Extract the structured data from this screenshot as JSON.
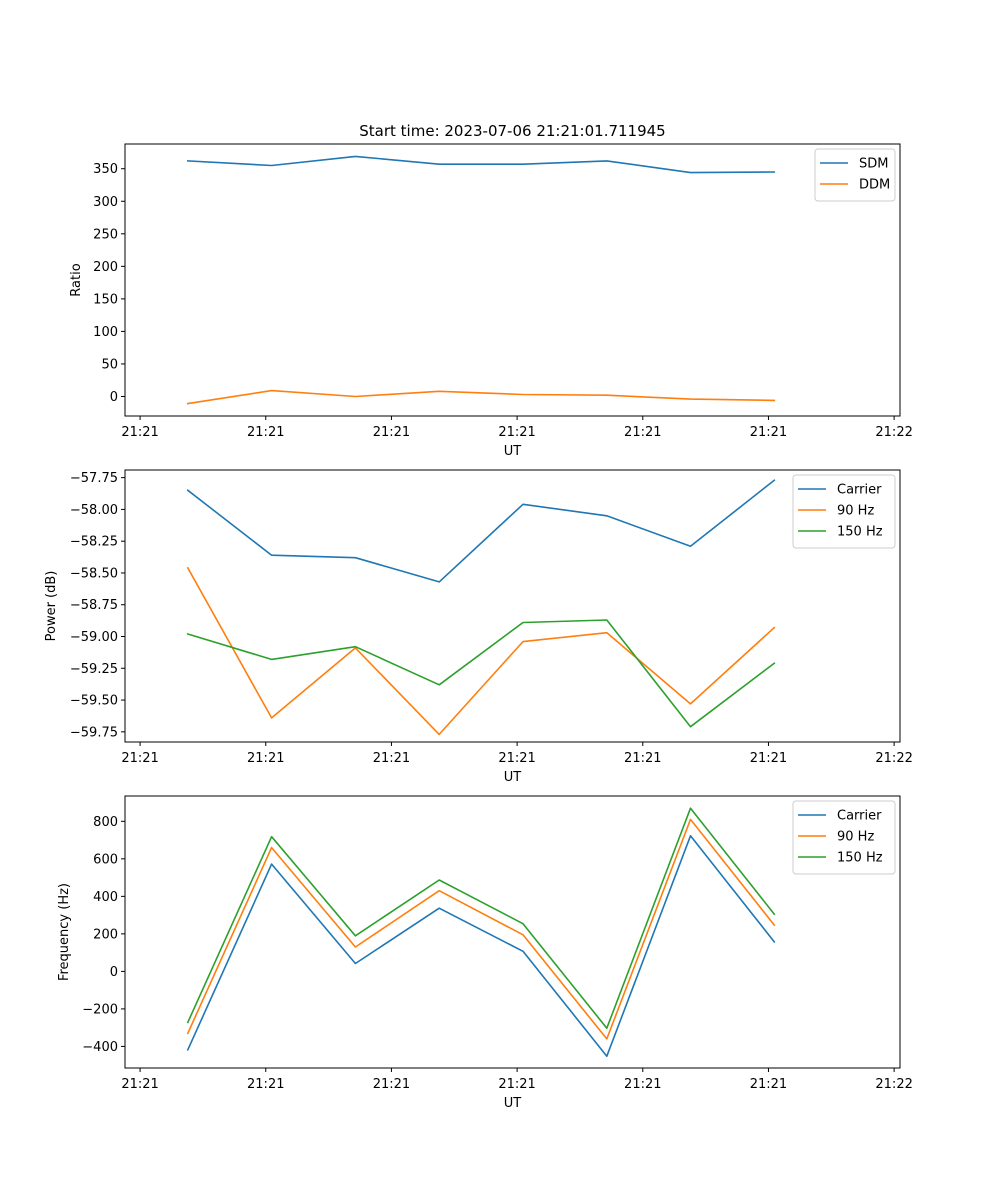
{
  "figure_title": "Start time: 2023-07-06 21:21:01.711945",
  "colors": {
    "blue": "#1f77b4",
    "orange": "#ff7f0e",
    "green": "#2ca02c"
  },
  "chart_data": [
    {
      "type": "line",
      "title": "Start time: 2023-07-06 21:21:01.711945",
      "xlabel": "UT",
      "ylabel": "Ratio",
      "xlim": [
        -0.75,
        8.5
      ],
      "ylim": [
        -30,
        388
      ],
      "x_ticks": [
        -0.57,
        0.93,
        2.43,
        3.93,
        5.43,
        6.93,
        8.43
      ],
      "x_tick_labels": [
        "21:21",
        "21:21",
        "21:21",
        "21:21",
        "21:21",
        "21:21",
        "21:22"
      ],
      "y_ticks": [
        0,
        50,
        100,
        150,
        200,
        250,
        300,
        350
      ],
      "y_tick_labels": [
        "0",
        "50",
        "100",
        "150",
        "200",
        "250",
        "300",
        "350"
      ],
      "x": [
        0,
        1,
        2,
        3,
        4,
        5,
        6,
        7
      ],
      "series": [
        {
          "name": "SDM",
          "color": "#1f77b4",
          "values": [
            362,
            355,
            369,
            357,
            357,
            362,
            344,
            345
          ]
        },
        {
          "name": "DDM",
          "color": "#ff7f0e",
          "values": [
            -11,
            9,
            0,
            8,
            3,
            2,
            -4,
            -6
          ]
        }
      ],
      "legend": "top-right"
    },
    {
      "type": "line",
      "title": "",
      "xlabel": "UT",
      "ylabel": "Power (dB)",
      "xlim": [
        -0.75,
        8.5
      ],
      "ylim": [
        -59.83,
        -57.69
      ],
      "x_ticks": [
        -0.57,
        0.93,
        2.43,
        3.93,
        5.43,
        6.93,
        8.43
      ],
      "x_tick_labels": [
        "21:21",
        "21:21",
        "21:21",
        "21:21",
        "21:21",
        "21:21",
        "21:22"
      ],
      "y_ticks": [
        -59.75,
        -59.5,
        -59.25,
        -59.0,
        -58.75,
        -58.5,
        -58.25,
        -58.0,
        -57.75
      ],
      "y_tick_labels": [
        "−59.75",
        "−59.50",
        "−59.25",
        "−59.00",
        "−58.75",
        "−58.50",
        "−58.25",
        "−58.00",
        "−57.75"
      ],
      "x": [
        0,
        1,
        2,
        3,
        4,
        5,
        6,
        7
      ],
      "series": [
        {
          "name": "Carrier",
          "color": "#1f77b4",
          "values": [
            -57.85,
            -58.36,
            -58.38,
            -58.57,
            -57.96,
            -58.05,
            -58.29,
            -57.77
          ]
        },
        {
          "name": "90 Hz",
          "color": "#ff7f0e",
          "values": [
            -58.46,
            -59.64,
            -59.09,
            -59.77,
            -59.04,
            -58.97,
            -59.53,
            -58.93
          ]
        },
        {
          "name": "150 Hz",
          "color": "#2ca02c",
          "values": [
            -58.98,
            -59.18,
            -59.08,
            -59.38,
            -58.89,
            -58.87,
            -59.71,
            -59.21
          ]
        }
      ],
      "legend": "top-right"
    },
    {
      "type": "line",
      "title": "",
      "xlabel": "UT",
      "ylabel": "Frequency (Hz)",
      "xlim": [
        -0.75,
        8.5
      ],
      "ylim": [
        -515,
        935
      ],
      "x_ticks": [
        -0.57,
        0.93,
        2.43,
        3.93,
        5.43,
        6.93,
        8.43
      ],
      "x_tick_labels": [
        "21:21",
        "21:21",
        "21:21",
        "21:21",
        "21:21",
        "21:21",
        "21:22"
      ],
      "y_ticks": [
        -400,
        -200,
        0,
        200,
        400,
        600,
        800
      ],
      "y_tick_labels": [
        "−400",
        "−200",
        "0",
        "200",
        "400",
        "600",
        "800"
      ],
      "x": [
        0,
        1,
        2,
        3,
        4,
        5,
        6,
        7
      ],
      "series": [
        {
          "name": "Carrier",
          "color": "#1f77b4",
          "values": [
            -418,
            572,
            42,
            337,
            107,
            -452,
            723,
            157
          ]
        },
        {
          "name": "90 Hz",
          "color": "#ff7f0e",
          "values": [
            -330,
            660,
            130,
            430,
            195,
            -360,
            810,
            247
          ]
        },
        {
          "name": "150 Hz",
          "color": "#2ca02c",
          "values": [
            -272,
            718,
            190,
            487,
            254,
            -303,
            870,
            305
          ]
        }
      ],
      "legend": "top-right"
    }
  ]
}
